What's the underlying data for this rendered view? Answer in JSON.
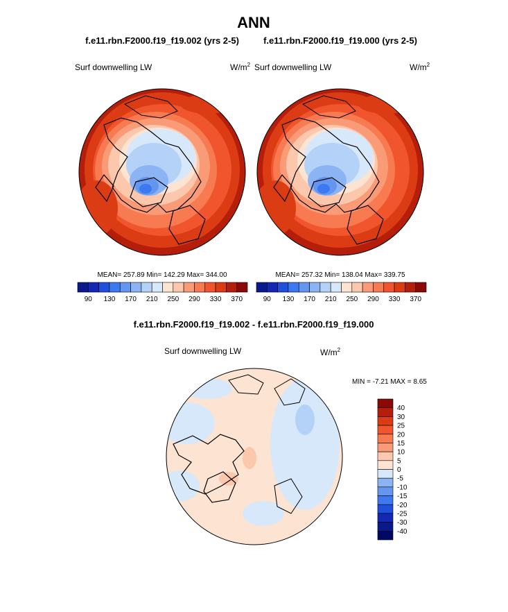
{
  "page_title": "ANN",
  "palette": [
    "#0a1a8c",
    "#1428b4",
    "#1e50dc",
    "#3c78f0",
    "#6496f0",
    "#8cb4f4",
    "#b4d2f8",
    "#d7e8fa",
    "#fde4d2",
    "#fcc8ad",
    "#fa9b78",
    "#f77a50",
    "#f0552d",
    "#dc3c14",
    "#b41e0a",
    "#8c0a05"
  ],
  "panels": [
    {
      "case": "f.e11.rbn.F2000.f19_f19.002 (yrs 2-5)",
      "variable": "Surf downwelling LW",
      "units": "W/m",
      "units_exp": "2",
      "mean_label": "MEAN= 257.89  Min= 142.29  Max= 344.00",
      "colorbar_ticks": [
        "90",
        "130",
        "170",
        "210",
        "250",
        "290",
        "330",
        "370"
      ]
    },
    {
      "case": "f.e11.rbn.F2000.f19_f19.000 (yrs 2-5)",
      "variable": "Surf downwelling LW",
      "units": "W/m",
      "units_exp": "2",
      "mean_label": "MEAN= 257.32  Min= 138.04  Max= 339.75",
      "colorbar_ticks": [
        "90",
        "130",
        "170",
        "210",
        "250",
        "290",
        "330",
        "370"
      ]
    }
  ],
  "diff_panel": {
    "title": "f.e11.rbn.F2000.f19_f19.002 - f.e11.rbn.F2000.f19_f19.000",
    "variable": "Surf downwelling LW",
    "units": "W/m",
    "units_exp": "2",
    "minmax_label": "MIN =  -7.21 MAX =   8.65",
    "colorbar_ticks": [
      "40",
      "30",
      "25",
      "20",
      "15",
      "10",
      "5",
      "0",
      "-5",
      "-10",
      "-15",
      "-20",
      "-25",
      "-30",
      "-40"
    ],
    "colorbar_colors": [
      "#8c0a05",
      "#b41e0a",
      "#dc3c14",
      "#f0552d",
      "#f77a50",
      "#fa9b78",
      "#fcc8ad",
      "#fde4d2",
      "#d7e8fa",
      "#8cb4f4",
      "#6496f0",
      "#3c78f0",
      "#1e50dc",
      "#1428b4",
      "#0a1a8c",
      "#000a64"
    ]
  },
  "chart_data": [
    {
      "type": "heatmap",
      "title": "f.e11.rbn.F2000.f19_f19.002 (yrs 2-5)",
      "variable": "Surf downwelling LW",
      "units": "W/m2",
      "projection": "north polar stereographic",
      "mean": 257.89,
      "min": 142.29,
      "max": 344.0,
      "contour_levels": [
        90,
        110,
        130,
        150,
        170,
        190,
        210,
        230,
        250,
        270,
        290,
        310,
        330,
        350,
        370
      ]
    },
    {
      "type": "heatmap",
      "title": "f.e11.rbn.F2000.f19_f19.000 (yrs 2-5)",
      "variable": "Surf downwelling LW",
      "units": "W/m2",
      "projection": "north polar stereographic",
      "mean": 257.32,
      "min": 138.04,
      "max": 339.75,
      "contour_levels": [
        90,
        110,
        130,
        150,
        170,
        190,
        210,
        230,
        250,
        270,
        290,
        310,
        330,
        350,
        370
      ]
    },
    {
      "type": "heatmap",
      "title": "f.e11.rbn.F2000.f19_f19.002 - f.e11.rbn.F2000.f19_f19.000",
      "variable": "Surf downwelling LW",
      "units": "W/m2",
      "projection": "north polar stereographic",
      "min": -7.21,
      "max": 8.65,
      "contour_levels": [
        -40,
        -30,
        -25,
        -20,
        -15,
        -10,
        -5,
        0,
        5,
        10,
        15,
        20,
        25,
        30,
        40
      ]
    }
  ]
}
